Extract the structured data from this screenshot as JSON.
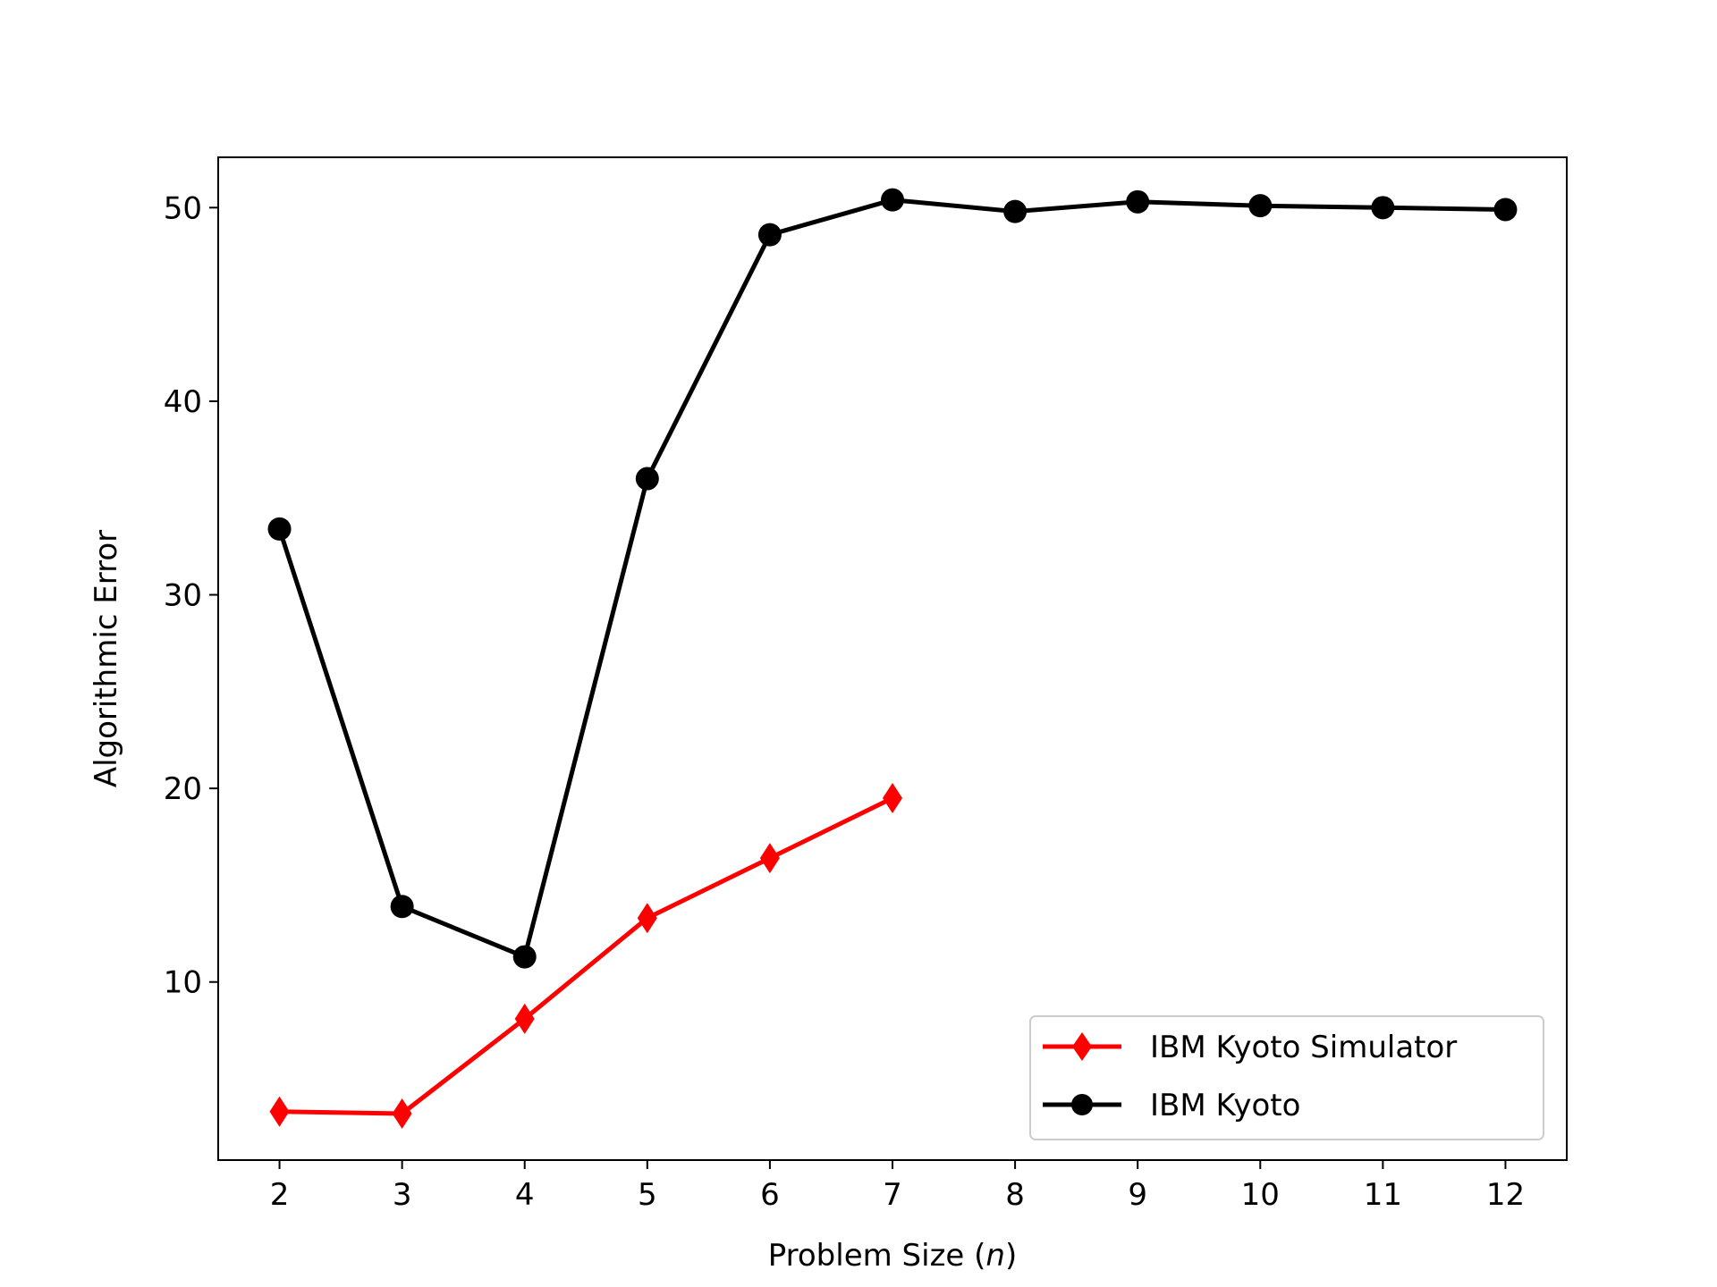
{
  "chart_data": {
    "type": "line",
    "title": "",
    "xlabel": "Problem Size (n)",
    "xlabel_main": "Problem Size (",
    "xlabel_var": "n",
    "xlabel_end": ")",
    "ylabel": "Algorithmic Error",
    "xlim": [
      1.5,
      12.5
    ],
    "ylim": [
      0.8,
      52.6
    ],
    "xticks": [
      2,
      3,
      4,
      5,
      6,
      7,
      8,
      9,
      10,
      11,
      12
    ],
    "yticks": [
      10,
      20,
      30,
      40,
      50
    ],
    "grid": false,
    "legend_position": "bottom-right",
    "series": [
      {
        "name": "IBM Kyoto Simulator",
        "color": "#ff0000",
        "marker": "diamond",
        "x": [
          2,
          3,
          4,
          5,
          6,
          7
        ],
        "y": [
          3.3,
          3.2,
          8.1,
          13.3,
          16.4,
          19.5
        ]
      },
      {
        "name": "IBM Kyoto",
        "color": "#000000",
        "marker": "circle",
        "x": [
          2,
          3,
          4,
          5,
          6,
          7,
          8,
          9,
          10,
          11,
          12
        ],
        "y": [
          33.4,
          13.9,
          11.3,
          36.0,
          48.6,
          50.4,
          49.8,
          50.3,
          50.1,
          50.0,
          49.9
        ]
      }
    ]
  }
}
